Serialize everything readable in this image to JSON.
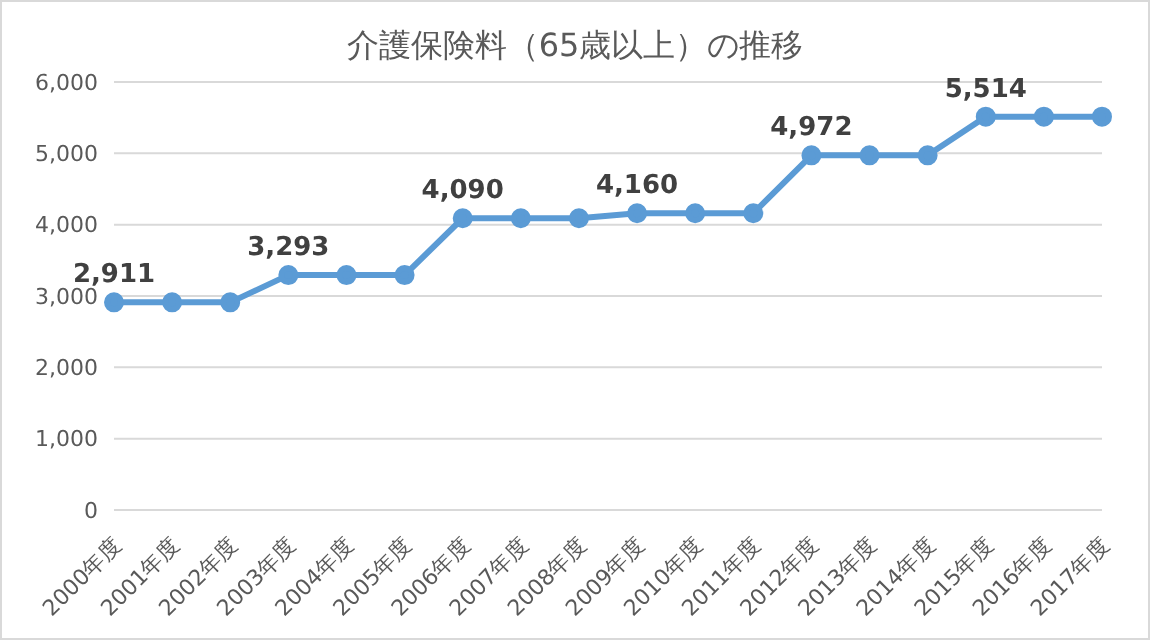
{
  "chart_data": {
    "type": "line",
    "title": "介護保険料（65歳以上）の推移",
    "categories": [
      "2000年度",
      "2001年度",
      "2002年度",
      "2003年度",
      "2004年度",
      "2005年度",
      "2006年度",
      "2007年度",
      "2008年度",
      "2009年度",
      "2010年度",
      "2011年度",
      "2012年度",
      "2013年度",
      "2014年度",
      "2015年度",
      "2016年度",
      "2017年度"
    ],
    "series": [
      {
        "color": "#5b9bd5",
        "values": [
          2911,
          2911,
          2911,
          3293,
          3293,
          3293,
          4090,
          4090,
          4090,
          4160,
          4160,
          4160,
          4972,
          4972,
          4972,
          5514,
          5514,
          5514
        ],
        "value_labels": [
          "2,911",
          null,
          null,
          "3,293",
          null,
          null,
          "4,090",
          null,
          null,
          "4,160",
          null,
          null,
          "4,972",
          null,
          null,
          "5,514",
          null,
          null
        ]
      }
    ],
    "ylim": [
      0,
      6000
    ],
    "yticks": [
      {
        "value": 0,
        "label": "0"
      },
      {
        "value": 1000,
        "label": "1,000"
      },
      {
        "value": 2000,
        "label": "2,000"
      },
      {
        "value": 3000,
        "label": "3,000"
      },
      {
        "value": 4000,
        "label": "4,000"
      },
      {
        "value": 5000,
        "label": "5,000"
      },
      {
        "value": 6000,
        "label": "6,000"
      }
    ],
    "grid": "y",
    "marker": "circle",
    "line_style": "solid",
    "legend": false
  }
}
